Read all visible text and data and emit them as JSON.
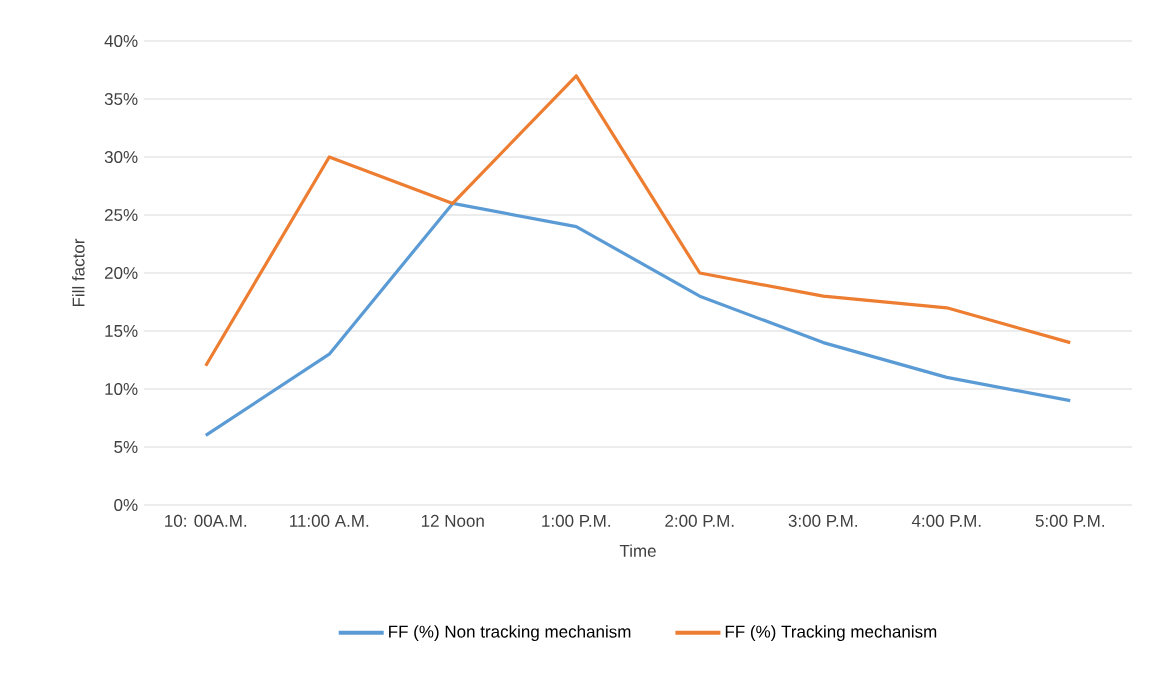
{
  "chart_data": {
    "type": "line",
    "xlabel": "Time",
    "ylabel": "Fill factor",
    "categories": [
      "10: 00A.M.",
      "11:00 A.M.",
      "12 Noon",
      "1:00 P.M.",
      "2:00 P.M.",
      "3:00 P.M.",
      "4:00 P.M.",
      "5:00 P.M."
    ],
    "series": [
      {
        "name": "FF (%) Non tracking mechanism",
        "color": "#5b9bd5",
        "values": [
          6,
          13,
          26,
          24,
          18,
          14,
          11,
          9
        ]
      },
      {
        "name": "FF (%) Tracking mechanism",
        "color": "#ed7d31",
        "values": [
          12,
          30,
          26,
          37,
          20,
          18,
          17,
          14
        ]
      }
    ],
    "ylim": [
      0,
      40
    ],
    "yticks": [
      {
        "value": 0,
        "label": "0%"
      },
      {
        "value": 5,
        "label": "5%"
      },
      {
        "value": 10,
        "label": "10%"
      },
      {
        "value": 15,
        "label": "15%"
      },
      {
        "value": 20,
        "label": "20%"
      },
      {
        "value": 25,
        "label": "25%"
      },
      {
        "value": 30,
        "label": "30%"
      },
      {
        "value": 35,
        "label": "35%"
      },
      {
        "value": 40,
        "label": "40%"
      }
    ],
    "grid": "y",
    "legend": "bottom",
    "marker": "none",
    "line_style": "solid"
  }
}
